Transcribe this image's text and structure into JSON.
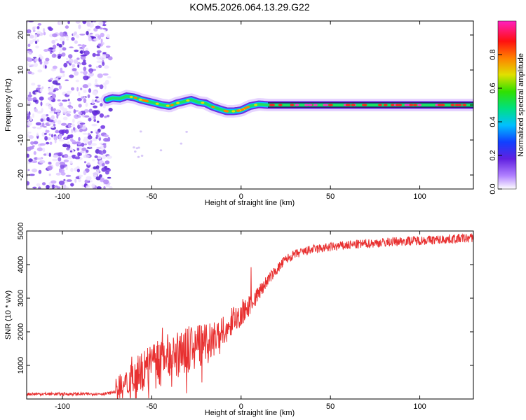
{
  "title": "KOM5.2026.064.13.29.G22",
  "chart_data": [
    {
      "type": "heatmap",
      "panel": "spectrogram",
      "xlabel": "Height of straight line (km)",
      "ylabel": "Frequency (Hz)",
      "xlim": [
        -120,
        130
      ],
      "ylim": [
        -24,
        24
      ],
      "xticks": [
        -100,
        -50,
        0,
        50,
        100
      ],
      "yticks": [
        -20,
        -10,
        0,
        10,
        20
      ],
      "noise_region_x": [
        -120,
        -73
      ],
      "trace": {
        "x": [
          -75,
          -72,
          -68,
          -64,
          -60,
          -56,
          -52,
          -48,
          -44,
          -40,
          -36,
          -32,
          -28,
          -24,
          -20,
          -16,
          -12,
          -8,
          -4,
          0,
          5,
          10,
          15,
          20,
          30,
          40,
          50,
          60,
          70,
          80,
          90,
          100,
          110,
          120,
          130
        ],
        "freq": [
          1.5,
          2.0,
          1.8,
          2.5,
          2.2,
          1.5,
          1.0,
          0.5,
          0.0,
          -0.3,
          0.5,
          1.0,
          1.5,
          0.8,
          0.5,
          -0.5,
          -1.2,
          -1.8,
          -1.8,
          -1.5,
          -0.3,
          0.2,
          0.0,
          0.0,
          0.0,
          0.0,
          0.0,
          0.0,
          0.0,
          0.0,
          0.0,
          0.0,
          0.0,
          0.0,
          0.0
        ]
      },
      "colorbar": {
        "label": "Normalized spectral amplitude",
        "range": [
          0.0,
          1.0
        ],
        "ticks": [
          "0.0",
          "0.2",
          "0.4",
          "0.6",
          "0.8"
        ]
      }
    },
    {
      "type": "line",
      "panel": "snr",
      "xlabel": "Height of straight line (km)",
      "ylabel": "SNR (10 * v/v)",
      "xlim": [
        -120,
        130
      ],
      "ylim": [
        0,
        5000
      ],
      "xticks": [
        -100,
        -50,
        0,
        50,
        100
      ],
      "yticks": [
        1000,
        2000,
        3000,
        4000,
        5000
      ],
      "color": "#e83030",
      "series": [
        {
          "name": "SNR",
          "x": [
            -120,
            -100,
            -85,
            -75,
            -70,
            -65,
            -60,
            -55,
            -50,
            -45,
            -40,
            -35,
            -30,
            -25,
            -20,
            -15,
            -10,
            -5,
            0,
            5,
            10,
            15,
            20,
            25,
            30,
            35,
            40,
            50,
            60,
            70,
            80,
            90,
            100,
            110,
            120,
            130
          ],
          "values": [
            150,
            150,
            150,
            160,
            220,
            350,
            600,
            850,
            1000,
            1100,
            1200,
            1350,
            1450,
            1550,
            1650,
            1800,
            2050,
            2300,
            2500,
            2800,
            3150,
            3550,
            3850,
            4150,
            4300,
            4380,
            4450,
            4520,
            4580,
            4620,
            4660,
            4700,
            4720,
            4740,
            4770,
            4800
          ]
        }
      ]
    }
  ]
}
